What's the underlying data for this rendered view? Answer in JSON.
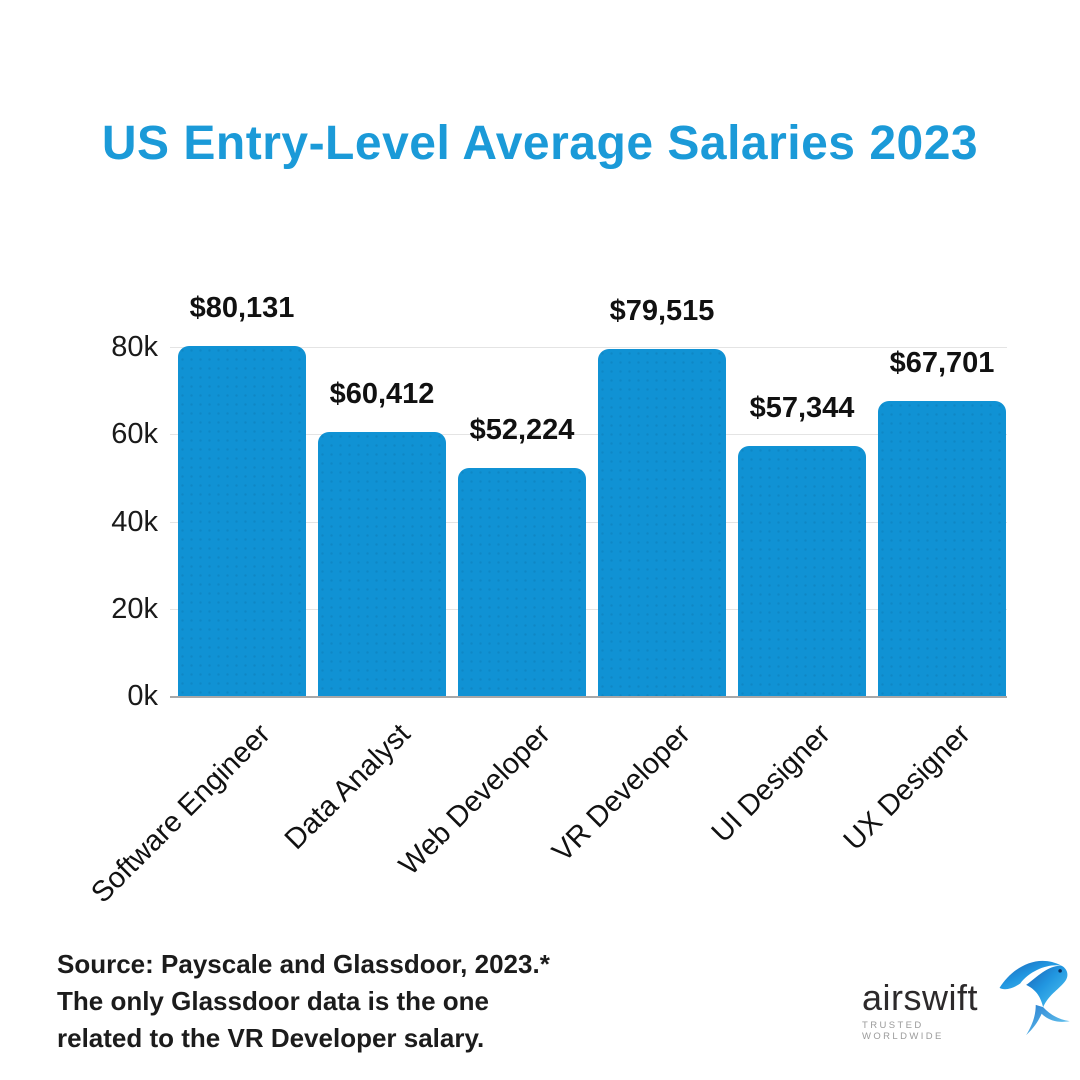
{
  "title": "US Entry-Level Average Salaries 2023",
  "chart_data": {
    "type": "bar",
    "title": "US Entry-Level Average Salaries 2023",
    "categories": [
      "Software Engineer",
      "Data Analyst",
      "Web Developer",
      "VR Developer",
      "UI Designer",
      "UX Designer"
    ],
    "values": [
      80131,
      60412,
      52224,
      79515,
      57344,
      67701
    ],
    "value_labels": [
      "$80,131",
      "$60,412",
      "$52,224",
      "$79,515",
      "$57,344",
      "$67,701"
    ],
    "xlabel": "",
    "ylabel": "",
    "ylim": [
      0,
      80000
    ],
    "yticks": [
      {
        "value": 0,
        "label": "0k"
      },
      {
        "value": 20000,
        "label": "20k"
      },
      {
        "value": 40000,
        "label": "40k"
      },
      {
        "value": 60000,
        "label": "60k"
      },
      {
        "value": 80000,
        "label": "80k"
      }
    ],
    "grid": "horizontal",
    "legend": "none",
    "x_tick_rotation_deg": 45
  },
  "footer": {
    "source_lines": [
      "Source: Payscale and Glassdoor, 2023.*",
      "The only Glassdoor data is the one",
      "related to the VR Developer salary."
    ]
  },
  "logo": {
    "name": "airswift",
    "tagline": "TRUSTED WORLDWIDE",
    "icon": "swift-bird-icon"
  },
  "colors": {
    "title": "#1b9ad8",
    "bar": "#1092d4",
    "grid": "#e4e4e4",
    "axis": "#a8a8a8",
    "text": "#111111",
    "tagline": "#9b9b9b",
    "bird_dark": "#1b5fb2",
    "bird_mid": "#2196e0",
    "bird_light": "#55c8f2"
  }
}
